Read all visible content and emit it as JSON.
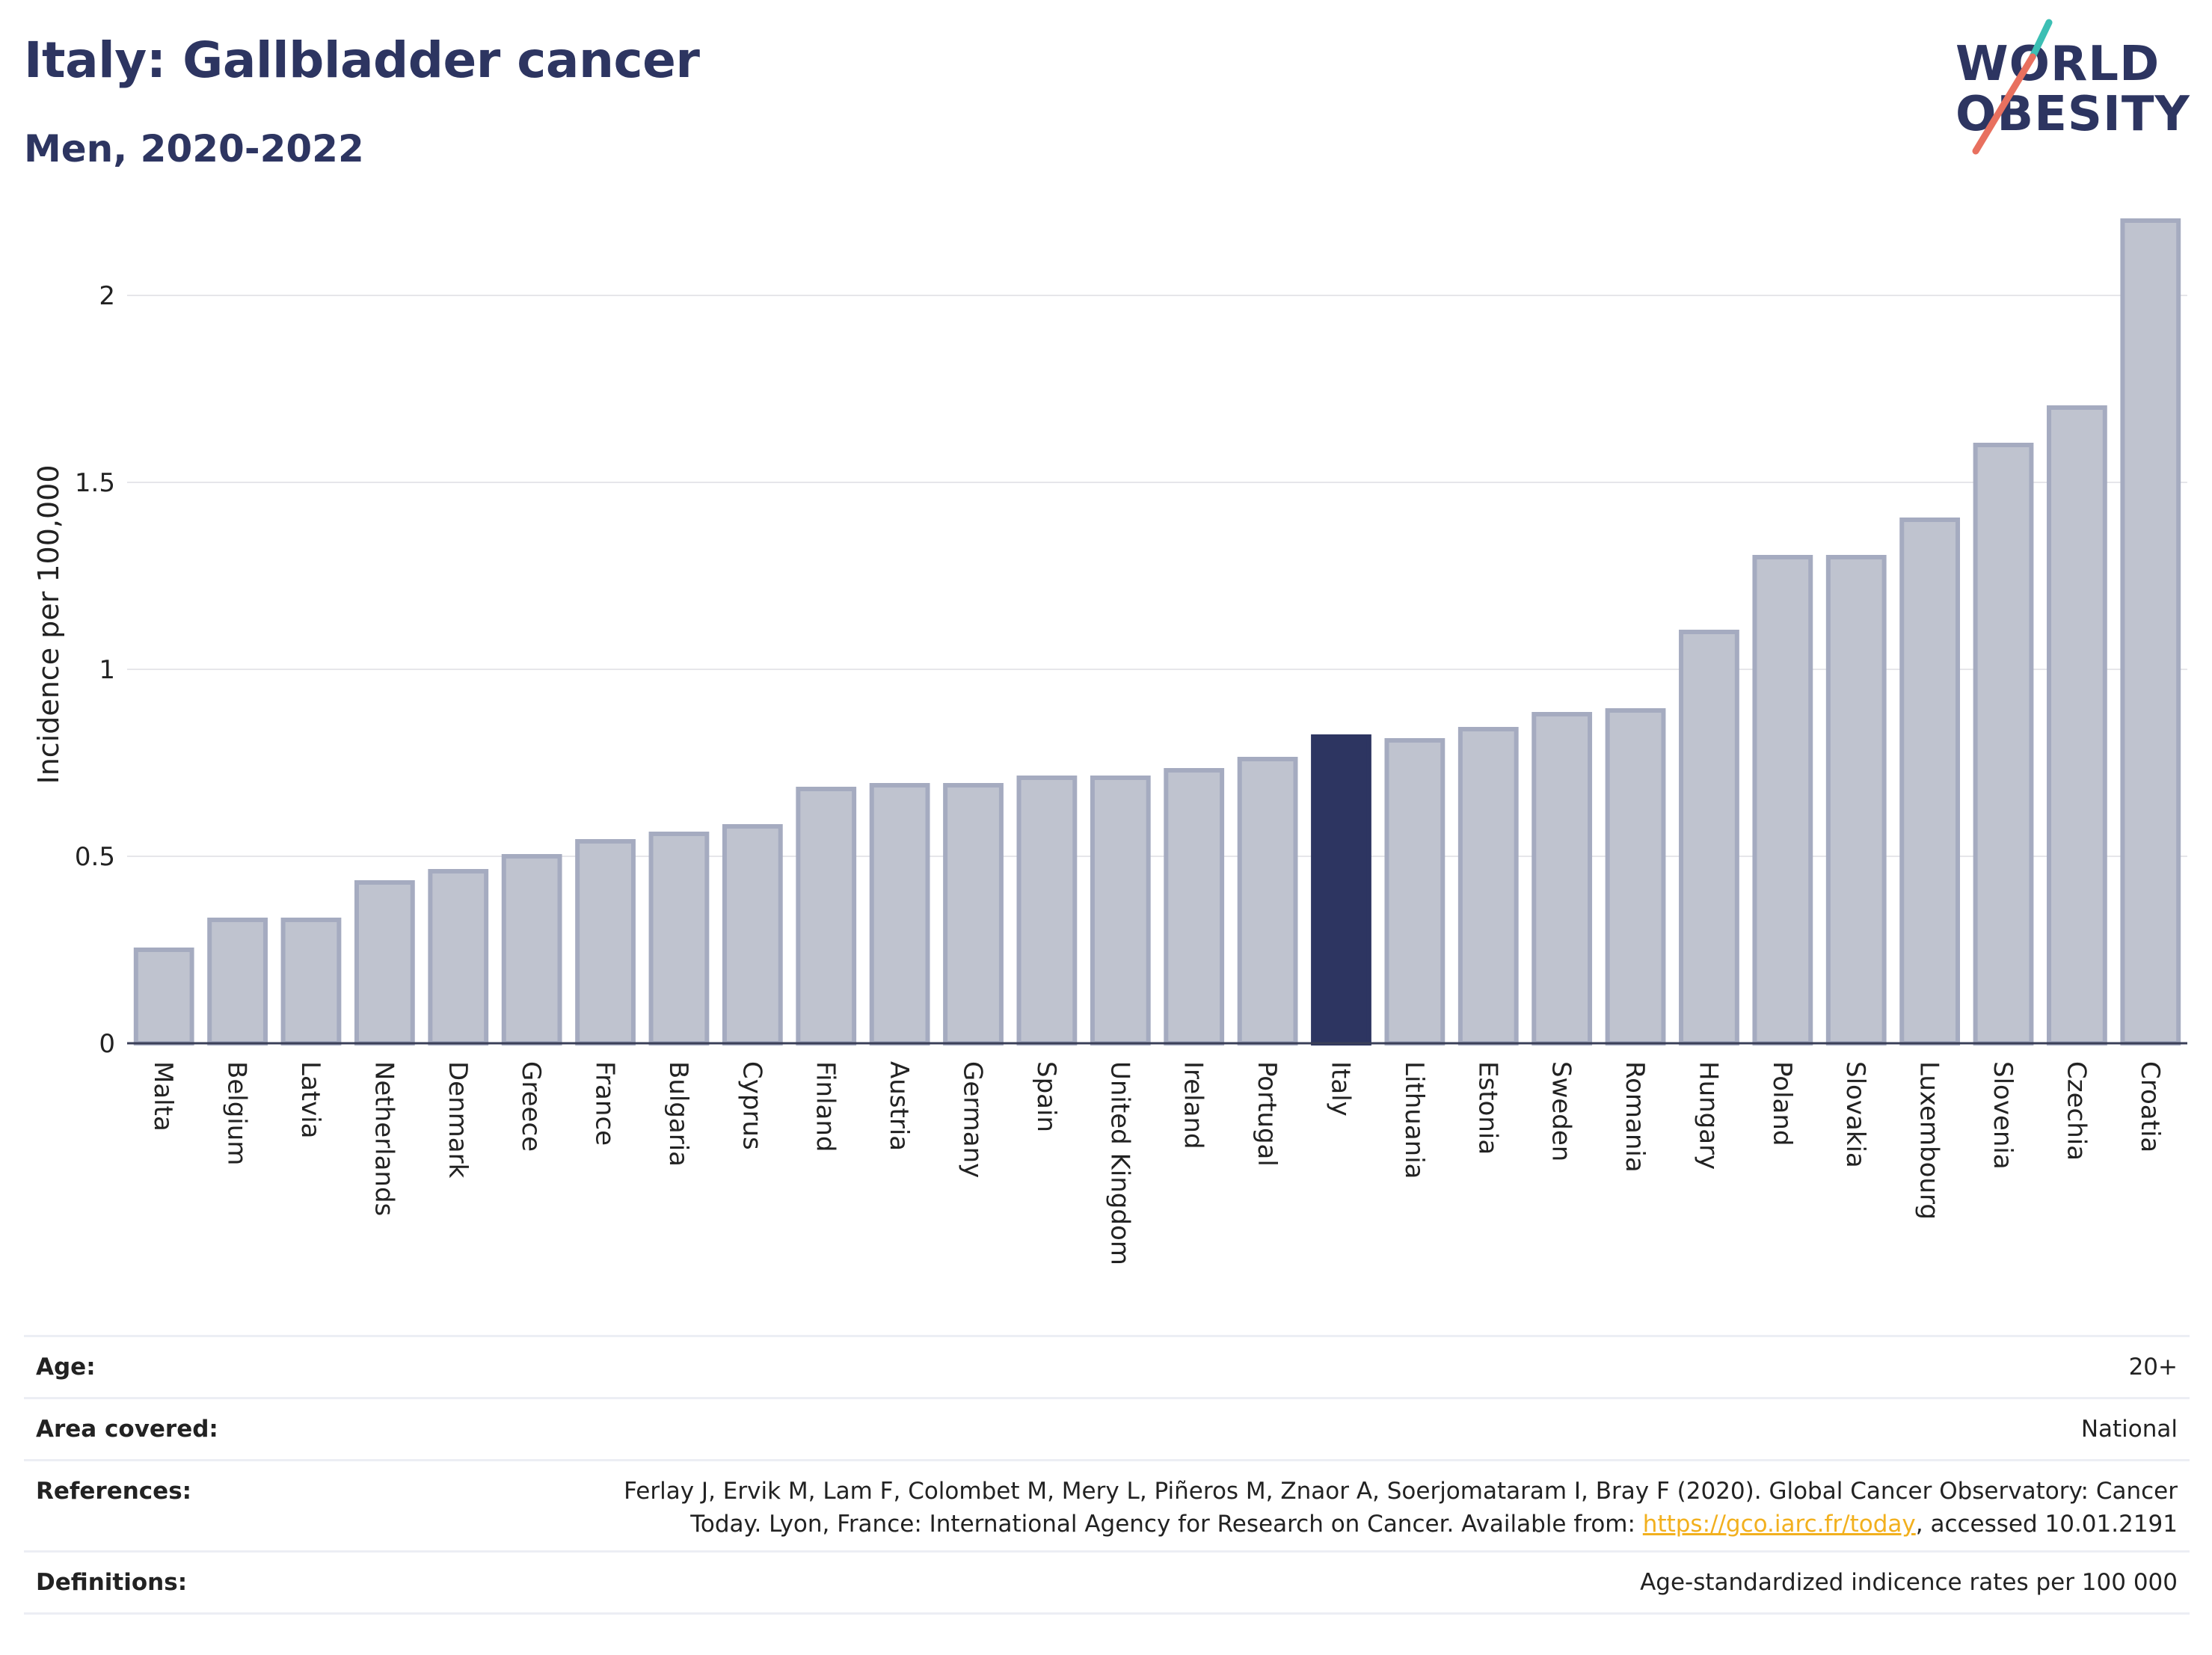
{
  "header": {
    "title": "Italy: Gallbladder cancer",
    "subtitle": "Men, 2020-2022"
  },
  "logo": {
    "line1": "WORLD",
    "line2": "OBESITY",
    "colors": {
      "text": "#2d3561",
      "slash_teal": "#3cbfb4",
      "slash_coral": "#e8705f"
    }
  },
  "colors": {
    "highlight_bar": "#2d3561",
    "other_bar_fill": "#bfc3cf",
    "other_bar_stroke": "#a5abc0",
    "gridline": "#e6e6ea"
  },
  "chart_data": {
    "type": "bar",
    "ylabel": "Incidence per 100,000",
    "ylim": [
      0,
      2.25
    ],
    "yticks": [
      0,
      0.5,
      1,
      1.5,
      2
    ],
    "ytick_labels": [
      "0",
      "0.5",
      "1",
      "1.5",
      "2"
    ],
    "grid": true,
    "highlight": "Italy",
    "categories": [
      "Malta",
      "Belgium",
      "Latvia",
      "Netherlands",
      "Denmark",
      "Greece",
      "France",
      "Bulgaria",
      "Cyprus",
      "Finland",
      "Austria",
      "Germany",
      "Spain",
      "United Kingdom",
      "Ireland",
      "Portugal",
      "Italy",
      "Lithuania",
      "Estonia",
      "Sweden",
      "Romania",
      "Hungary",
      "Poland",
      "Slovakia",
      "Luxembourg",
      "Slovenia",
      "Czechia",
      "Croatia"
    ],
    "values": [
      0.25,
      0.33,
      0.33,
      0.43,
      0.46,
      0.5,
      0.54,
      0.56,
      0.58,
      0.68,
      0.69,
      0.69,
      0.71,
      0.71,
      0.73,
      0.76,
      0.82,
      0.81,
      0.84,
      0.88,
      0.89,
      1.1,
      1.3,
      1.3,
      1.4,
      1.6,
      1.7,
      2.2
    ]
  },
  "info": {
    "age_label": "Age:",
    "age_value": "20+",
    "area_label": "Area covered:",
    "area_value": "National",
    "references_label": "References:",
    "references_line1": "Ferlay J, Ervik M, Lam F, Colombet M, Mery L, Piñeros M, Znaor A, Soerjomataram I, Bray F (2020). Global Cancer Observatory: Cancer",
    "references_line2_pre": "Today. Lyon, France: International Agency for Research on Cancer. Available from: ",
    "references_link": "https://gco.iarc.fr/today",
    "references_line2_post": ", accessed 10.01.2191",
    "definitions_label": "Definitions:",
    "definitions_value": "Age-standardized indicence rates per 100 000"
  }
}
